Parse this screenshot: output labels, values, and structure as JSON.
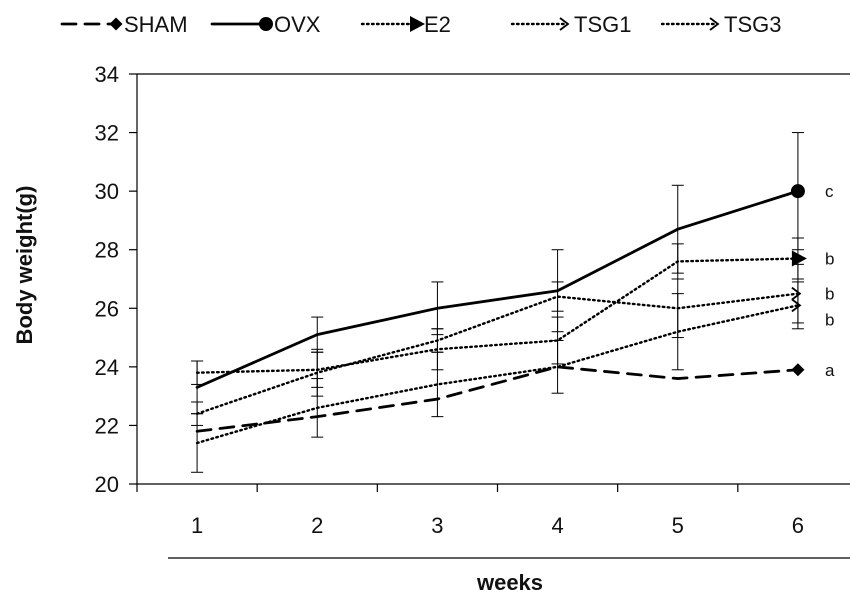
{
  "chart_data": {
    "type": "line",
    "title": "",
    "xlabel": "weeks",
    "ylabel": "Body weight(g)",
    "categories": [
      "1",
      "2",
      "3",
      "4",
      "5",
      "6"
    ],
    "ylim": [
      20,
      34
    ],
    "yticks": [
      "20",
      "22",
      "24",
      "26",
      "28",
      "30",
      "32",
      "34"
    ],
    "grid": false,
    "legend_position": "top",
    "series": [
      {
        "name": "SHAM",
        "style": "dashed",
        "marker": "diamond",
        "values": [
          21.8,
          22.3,
          22.9,
          24.0,
          23.6,
          23.9
        ],
        "error": [
          0,
          0,
          0,
          0,
          0,
          0
        ],
        "significance": "a"
      },
      {
        "name": "OVX",
        "style": "solid",
        "marker": "circle",
        "values": [
          23.3,
          25.1,
          26.0,
          26.6,
          28.7,
          30.0
        ],
        "error": [
          0.9,
          0.6,
          0.9,
          1.4,
          1.5,
          2.0
        ],
        "significance": "c"
      },
      {
        "name": "E2",
        "style": "dotted",
        "marker": "triangle",
        "values": [
          23.8,
          23.9,
          24.6,
          24.9,
          27.6,
          27.7
        ],
        "error": [
          0.4,
          0.6,
          0.7,
          0.8,
          0.6,
          0.7
        ],
        "significance": "b"
      },
      {
        "name": "TSG1",
        "style": "dotted",
        "marker": "arrow",
        "values": [
          22.4,
          23.8,
          24.9,
          26.4,
          26.0,
          26.5
        ],
        "error": [
          0.4,
          0.8,
          0.4,
          0.5,
          1.0,
          1.0
        ],
        "significance": "b"
      },
      {
        "name": "TSG3",
        "style": "dotted",
        "marker": "arrow",
        "values": [
          21.4,
          22.6,
          23.4,
          24.0,
          25.2,
          26.1
        ],
        "error": [
          1.0,
          1.0,
          1.1,
          0.9,
          1.3,
          0.8
        ],
        "significance": "b"
      }
    ],
    "colors": {
      "line": "#000000"
    }
  }
}
